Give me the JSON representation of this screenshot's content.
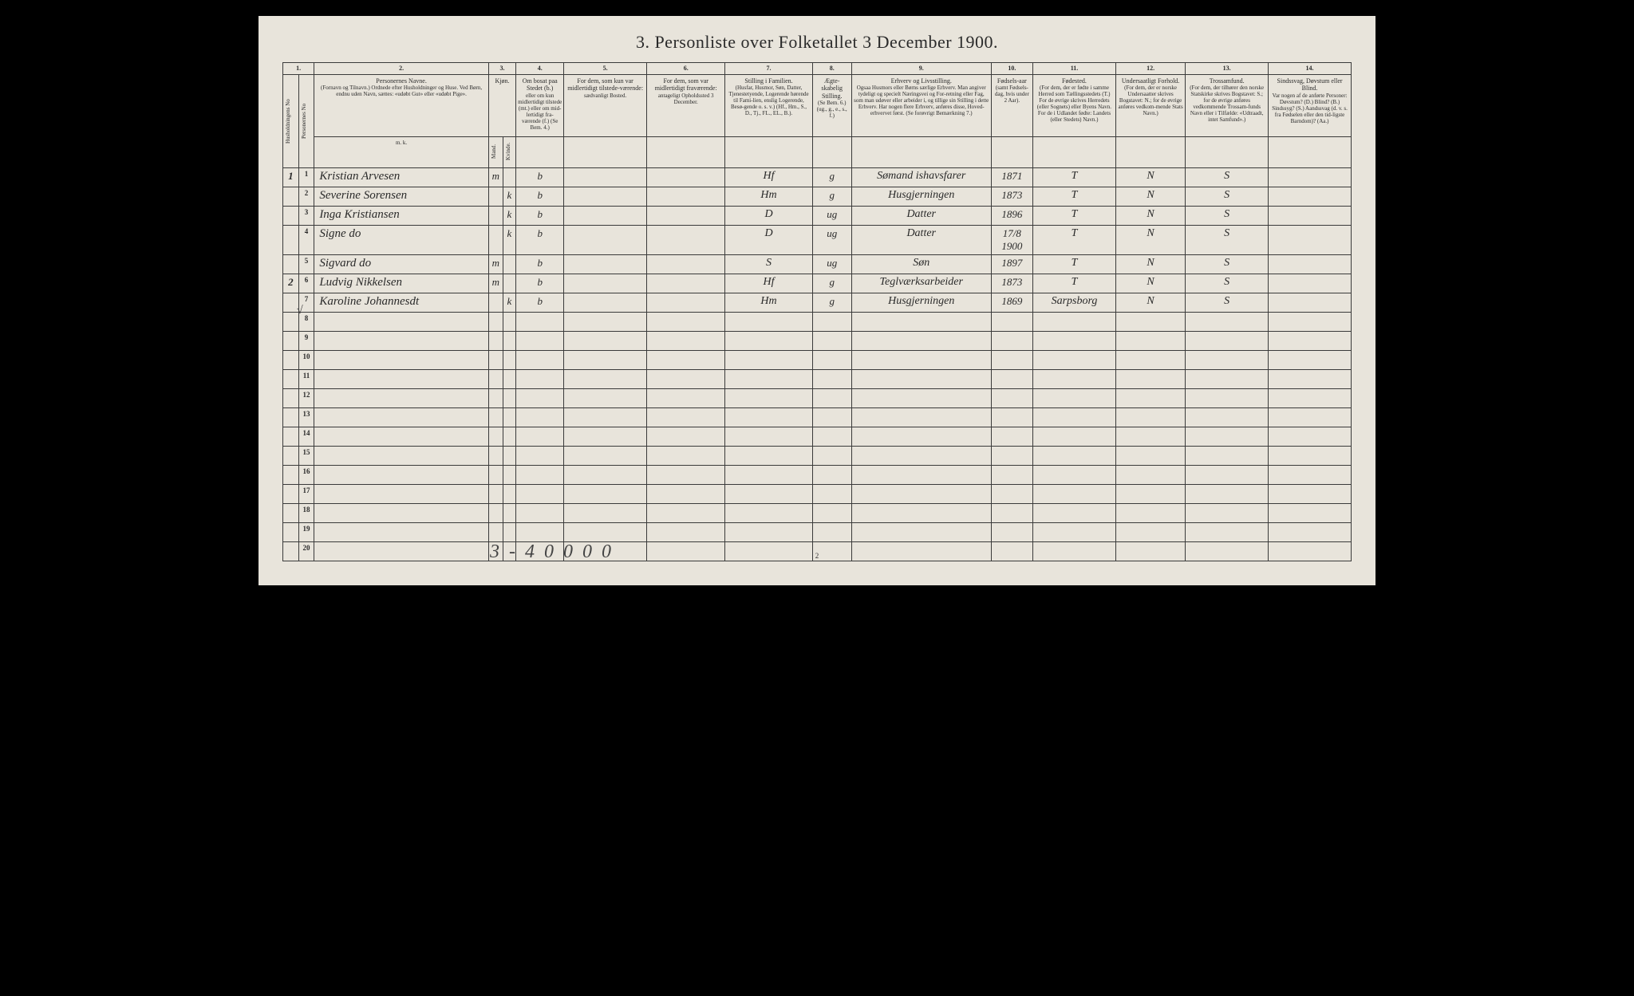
{
  "title": "3. Personliste over Folketallet 3 December 1900.",
  "colNumbers": [
    "1.",
    "2.",
    "3.",
    "4.",
    "5.",
    "6.",
    "7.",
    "8.",
    "9.",
    "10.",
    "11.",
    "12.",
    "13.",
    "14."
  ],
  "headers": {
    "col1a": "Husholdningens No",
    "col1b": "Personernes No",
    "col2_main": "Personernes Navne.",
    "col2_sub": "(Fornavn og Tilnavn.)\nOrdnede efter Husholdninger og Huse.\nVed Børn, endnu uden Navn, sættes: «udøbt Gut» eller «udøbt Pige».",
    "col3_main": "Kjøn.",
    "col3a": "Mand.",
    "col3b": "Kvinde.",
    "col4_main": "Om bosat paa Stedet (b.)",
    "col4_sub": "eller om kun midlertidigt tilstede (mt.) eller om mid-lertidigt fra-værende (f.)\n(Se Bem. 4.)",
    "col5_main": "For dem, som kun var midlertidigt tilstede-værende:",
    "col5_sub": "sædvanligt Bosted.",
    "col6_main": "For dem, som var midlertidigt fraværende:",
    "col6_sub": "antageligt Opholdssted 3 December.",
    "col7_main": "Stilling i Familien.",
    "col7_sub": "(Husfar, Husmor, Søn, Datter, Tjenestetyende, Logerende hørende til Fami-lien, enslig Logerende, Besø-gende o. s. v.)\n(Hf., Hm., S., D., Tj., FL., EL., B.).",
    "col8_main": "Ægte-skabelig Stilling.",
    "col8_sub": "(Se Bem. 6.)\n(ug., g., e., s., f.)",
    "col9_main": "Erhverv og Livsstilling.",
    "col9_sub": "Ogsaa Husmors eller Børns særlige Erhverv. Man angiver tydeligt og specielt Næringsvei og For-retning eller Fag, som man udøver eller arbeider i, og tillige sin Stilling i dette Erhverv.\nHar nogen flere Erhverv, anføres disse, Hoved-erhvervet først.\n(Se forøvrigt Bemærkning 7.)",
    "col10_main": "Fødsels-aar",
    "col10_sub": "(samt Fødsels-dag, hvis under 2 Aar).",
    "col11_main": "Fødested.",
    "col11_sub": "(For dem, der er fødte i samme Herred som Tællingsstedets (T.) For de øvrige skrives Herredets (eller Sognets) eller Byens Navn. For de i Udlandet fødte: Landets (eller Stedets) Navn.)",
    "col12_main": "Undersaatligt Forhold.",
    "col12_sub": "(For dem, der er norske Undersaatter skrives Bogstavet: N.; for de øvrige anføres vedkom-mende Stats Navn.)",
    "col13_main": "Trossamfund.",
    "col13_sub": "(For dem, der tilhører den norske Statskirke skrives Bogstavet: S.; for de øvrige anføres vedkommende Trossam-funds Navn eller i Tilfælde: «Udtraadt, intet Samfund».)",
    "col14_main": "Sindssvag, Døvstum eller Blind.",
    "col14_sub": "Var nogen af de anførte Personer:\nDøvstum? (D.)\nBlind? (B.)\nSindssyg? (S.)\nAandssvag (d. v. s. fra Fødselen eller den tid-ligste Barndom)? (Aa.)"
  },
  "rows": [
    {
      "hnum": "1",
      "pnum": "1",
      "name": "Kristian Arvesen",
      "gm": "m",
      "gk": "",
      "resid": "b",
      "c5": "",
      "c6": "",
      "famstatus": "Hf",
      "marital": "g",
      "occupation": "Sømand ishavsfarer",
      "birth": "1871",
      "birthplace": "T",
      "nat": "N",
      "rel": "S",
      "c14": ""
    },
    {
      "hnum": "",
      "pnum": "2",
      "name": "Severine Sorensen",
      "gm": "",
      "gk": "k",
      "resid": "b",
      "c5": "",
      "c6": "",
      "famstatus": "Hm",
      "marital": "g",
      "occupation": "Husgjerningen",
      "birth": "1873",
      "birthplace": "T",
      "nat": "N",
      "rel": "S",
      "c14": ""
    },
    {
      "hnum": "",
      "pnum": "3",
      "name": "Inga Kristiansen",
      "gm": "",
      "gk": "k",
      "resid": "b",
      "c5": "",
      "c6": "",
      "famstatus": "D",
      "marital": "ug",
      "occupation": "Datter",
      "birth": "1896",
      "birthplace": "T",
      "nat": "N",
      "rel": "S",
      "c14": ""
    },
    {
      "hnum": "",
      "pnum": "4",
      "name": "Signe do",
      "gm": "",
      "gk": "k",
      "resid": "b",
      "c5": "",
      "c6": "",
      "famstatus": "D",
      "marital": "ug",
      "occupation": "Datter",
      "birth": "17/8 1900",
      "birthplace": "T",
      "nat": "N",
      "rel": "S",
      "c14": ""
    },
    {
      "hnum": "",
      "pnum": "5",
      "name": "Sigvard do",
      "gm": "m",
      "gk": "",
      "resid": "b",
      "c5": "",
      "c6": "",
      "famstatus": "S",
      "marital": "ug",
      "occupation": "Søn",
      "birth": "1897",
      "birthplace": "T",
      "nat": "N",
      "rel": "S",
      "c14": ""
    },
    {
      "hnum": "2",
      "pnum": "6",
      "name": "Ludvig Nikkelsen",
      "gm": "m",
      "gk": "",
      "resid": "b",
      "c5": "",
      "c6": "",
      "famstatus": "Hf",
      "marital": "g",
      "occupation": "Teglværksarbeider",
      "birth": "1873",
      "birthplace": "T",
      "nat": "N",
      "rel": "S",
      "c14": ""
    },
    {
      "hnum": "",
      "pnum": "7",
      "name": "Karoline Johannesdt",
      "gm": "",
      "gk": "k",
      "resid": "b",
      "c5": "",
      "c6": "",
      "famstatus": "Hm",
      "marital": "g",
      "occupation": "Husgjerningen",
      "birth": "1869",
      "birthplace": "Sarpsborg",
      "nat": "N",
      "rel": "S",
      "c14": ""
    }
  ],
  "emptyRows": [
    8,
    9,
    10,
    11,
    12,
    13,
    14,
    15,
    16,
    17,
    18,
    19,
    20
  ],
  "marginMark": "√",
  "bottomNote": "3 - 4 0 0 0 0",
  "pageNum": "2",
  "colors": {
    "paper": "#e8e4db",
    "ink": "#2a2a2a",
    "border": "#3a3a3a",
    "background": "#000000"
  }
}
